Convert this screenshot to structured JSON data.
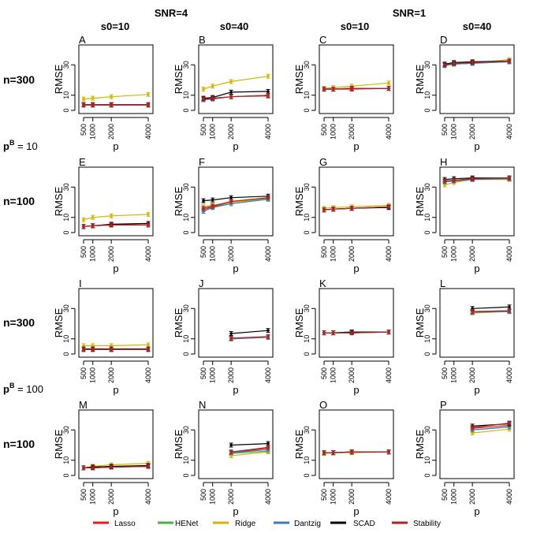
{
  "header": {
    "snr_titles": [
      "SNR=4",
      "SNR=1"
    ],
    "s0_titles": [
      "s0=10",
      "s0=40",
      "s0=10",
      "s0=40"
    ]
  },
  "row_labels": [
    "n=300",
    "n=100",
    "n=300",
    "n=100"
  ],
  "group_labels": [
    {
      "base": "p",
      "sup": "B",
      "rest": " = 10"
    },
    {
      "base": "p",
      "sup": "B",
      "rest": " = 100"
    }
  ],
  "legend": {
    "position": "bottom",
    "items": [
      {
        "label": "Lasso",
        "color": "#e41a1c"
      },
      {
        "label": "HENet",
        "color": "#4daf4a"
      },
      {
        "label": "Ridge",
        "color": "#d4b400"
      },
      {
        "label": "Dantzig",
        "color": "#377eb8"
      },
      {
        "label": "SCAD",
        "color": "#000000"
      },
      {
        "label": "Stability",
        "color": "#b22222"
      }
    ]
  },
  "chart_data": {
    "type": "line",
    "grid": false,
    "xlabel": "p",
    "ylabel": "RMSE",
    "x_ticks": [
      500,
      1000,
      2000,
      4000
    ],
    "y_ticks": [
      0,
      10,
      30
    ],
    "ylim": [
      0,
      40
    ],
    "series_order": [
      "Lasso",
      "HENet",
      "Ridge",
      "Dantzig",
      "SCAD",
      "Stability"
    ],
    "panels": [
      {
        "letter": "A",
        "x": [
          500,
          1000,
          2000,
          4000
        ],
        "series": {
          "Lasso": [
            3.5,
            3.5,
            3.5,
            3.5
          ],
          "HENet": [
            3.6,
            3.6,
            3.6,
            3.6
          ],
          "Ridge": [
            7.5,
            8,
            9,
            10.5
          ],
          "Dantzig": [
            3.5,
            3.5,
            3.5,
            3.5
          ],
          "SCAD": [
            3.8,
            3.8,
            3.8,
            3.8
          ],
          "Stability": [
            3.6,
            3.6,
            3.6,
            3.6
          ]
        }
      },
      {
        "letter": "B",
        "x": [
          500,
          1000,
          2000,
          4000
        ],
        "series": {
          "Lasso": [
            7,
            7.5,
            9,
            9.5
          ],
          "HENet": [
            7.5,
            8,
            9,
            10
          ],
          "Ridge": [
            14,
            16,
            19,
            22.5
          ],
          "Dantzig": [
            7,
            7.5,
            9,
            10
          ],
          "SCAD": [
            8,
            8.5,
            12,
            12.5
          ],
          "Stability": [
            7.5,
            8,
            9,
            10
          ]
        }
      },
      {
        "letter": "C",
        "x": [
          500,
          1000,
          2000,
          4000
        ],
        "series": {
          "Lasso": [
            14,
            14,
            14,
            14.5
          ],
          "HENet": [
            14,
            14,
            14.5,
            14.5
          ],
          "Ridge": [
            14.5,
            15,
            16,
            18
          ],
          "Dantzig": [
            14,
            14,
            14.5,
            14.5
          ],
          "SCAD": [
            14,
            14,
            14.5,
            14.5
          ],
          "Stability": [
            14,
            14,
            14.5,
            14.5
          ]
        }
      },
      {
        "letter": "D",
        "x": [
          500,
          1000,
          2000,
          4000
        ],
        "series": {
          "Lasso": [
            30,
            31,
            31.5,
            32.5
          ],
          "HENet": [
            29.5,
            30.5,
            31,
            32
          ],
          "Ridge": [
            30,
            30.5,
            31,
            33.5
          ],
          "Dantzig": [
            29.5,
            30.5,
            31,
            32
          ],
          "SCAD": [
            30.5,
            31.5,
            32,
            32.5
          ],
          "Stability": [
            30,
            31,
            31.5,
            32.5
          ]
        }
      },
      {
        "letter": "E",
        "x": [
          500,
          1000,
          2000,
          4000
        ],
        "series": {
          "Lasso": [
            4,
            4.5,
            5,
            5
          ],
          "HENet": [
            4,
            4.5,
            5,
            5
          ],
          "Ridge": [
            8.5,
            10,
            11,
            12
          ],
          "Dantzig": [
            4,
            4.5,
            5,
            5
          ],
          "SCAD": [
            4,
            4.5,
            5.5,
            6
          ],
          "Stability": [
            4,
            4.5,
            5,
            5
          ]
        }
      },
      {
        "letter": "F",
        "x": [
          500,
          1000,
          2000,
          4000
        ],
        "series": {
          "Lasso": [
            15,
            17,
            20,
            23
          ],
          "HENet": [
            16,
            17.5,
            20,
            22.5
          ],
          "Ridge": [
            17,
            18,
            20,
            22
          ],
          "Dantzig": [
            14,
            16.5,
            19,
            22
          ],
          "SCAD": [
            21,
            21.5,
            23,
            24
          ],
          "Stability": [
            16,
            17.5,
            20.5,
            23
          ]
        }
      },
      {
        "letter": "G",
        "x": [
          500,
          1000,
          2000,
          4000
        ],
        "series": {
          "Lasso": [
            15,
            15.5,
            16,
            17
          ],
          "HENet": [
            15,
            15.5,
            16,
            17
          ],
          "Ridge": [
            16,
            16.5,
            17,
            18
          ],
          "Dantzig": [
            15,
            15.5,
            16,
            17
          ],
          "SCAD": [
            15,
            15.5,
            16,
            16.5
          ],
          "Stability": [
            15,
            15.5,
            16,
            17
          ]
        }
      },
      {
        "letter": "H",
        "x": [
          500,
          1000,
          2000,
          4000
        ],
        "series": {
          "Lasso": [
            34,
            34.5,
            35.5,
            36
          ],
          "HENet": [
            33.5,
            34,
            35,
            35.5
          ],
          "Ridge": [
            31.5,
            33,
            35,
            35
          ],
          "Dantzig": [
            33.5,
            34,
            35,
            35.5
          ],
          "SCAD": [
            35,
            35.5,
            36,
            36
          ],
          "Stability": [
            34,
            34.5,
            35.5,
            36
          ]
        }
      },
      {
        "letter": "I",
        "x": [
          500,
          1000,
          2000,
          4000
        ],
        "series": {
          "Lasso": [
            3,
            3,
            3,
            3
          ],
          "HENet": [
            3,
            3,
            3,
            3
          ],
          "Ridge": [
            5.5,
            5.5,
            5.5,
            6
          ],
          "Dantzig": [
            3,
            3,
            3,
            3
          ],
          "SCAD": [
            3.3,
            3.3,
            3.3,
            3.3
          ],
          "Stability": [
            3,
            3,
            3,
            3
          ]
        }
      },
      {
        "letter": "J",
        "x": [
          2000,
          4000
        ],
        "series": {
          "Lasso": [
            10,
            11
          ],
          "HENet": [
            10.5,
            11
          ],
          "Ridge": [
            10,
            11
          ],
          "Dantzig": [
            10,
            11
          ],
          "SCAD": [
            13.5,
            15.5
          ],
          "Stability": [
            10.5,
            11.5
          ]
        }
      },
      {
        "letter": "K",
        "x": [
          500,
          1000,
          2000,
          4000
        ],
        "series": {
          "Lasso": [
            14,
            14,
            14,
            14.5
          ],
          "HENet": [
            14,
            14,
            14,
            14.5
          ],
          "Ridge": [
            14,
            14,
            14.5,
            14.5
          ],
          "Dantzig": [
            14,
            14,
            14,
            14.5
          ],
          "SCAD": [
            14,
            14,
            14.5,
            14.5
          ],
          "Stability": [
            14,
            14,
            14,
            14.5
          ]
        }
      },
      {
        "letter": "L",
        "x": [
          2000,
          4000
        ],
        "series": {
          "Lasso": [
            28,
            28.5
          ],
          "HENet": [
            27.5,
            28
          ],
          "Ridge": [
            27,
            28
          ],
          "Dantzig": [
            27.5,
            28
          ],
          "SCAD": [
            30,
            31
          ],
          "Stability": [
            28,
            28.5
          ]
        }
      },
      {
        "letter": "M",
        "x": [
          500,
          1000,
          2000,
          4000
        ],
        "series": {
          "Lasso": [
            5,
            5,
            5.5,
            6
          ],
          "HENet": [
            5,
            5,
            5.5,
            6
          ],
          "Ridge": [
            5,
            6,
            7,
            8
          ],
          "Dantzig": [
            5,
            5,
            5.5,
            6
          ],
          "SCAD": [
            5,
            5.5,
            6,
            6.5
          ],
          "Stability": [
            5,
            5,
            5.5,
            6
          ]
        }
      },
      {
        "letter": "N",
        "x": [
          2000,
          4000
        ],
        "series": {
          "Lasso": [
            15,
            18
          ],
          "HENet": [
            14.5,
            16
          ],
          "Ridge": [
            13,
            15.5
          ],
          "Dantzig": [
            15,
            17
          ],
          "SCAD": [
            20,
            21
          ],
          "Stability": [
            15.5,
            18.5
          ]
        }
      },
      {
        "letter": "O",
        "x": [
          500,
          1000,
          2000,
          4000
        ],
        "series": {
          "Lasso": [
            15,
            15,
            15.5,
            15.5
          ],
          "HENet": [
            15,
            15,
            15.5,
            15.5
          ],
          "Ridge": [
            14.5,
            15,
            15,
            15.5
          ],
          "Dantzig": [
            15,
            15,
            15.5,
            15.5
          ],
          "SCAD": [
            15,
            15,
            15.5,
            15.5
          ],
          "Stability": [
            15,
            15,
            15.5,
            15.5
          ]
        }
      },
      {
        "letter": "P",
        "x": [
          2000,
          4000
        ],
        "series": {
          "Lasso": [
            31,
            33
          ],
          "HENet": [
            30,
            32
          ],
          "Ridge": [
            28,
            30.5
          ],
          "Dantzig": [
            30,
            32
          ],
          "SCAD": [
            32.5,
            34
          ],
          "Stability": [
            31.5,
            34.5
          ]
        }
      }
    ]
  }
}
